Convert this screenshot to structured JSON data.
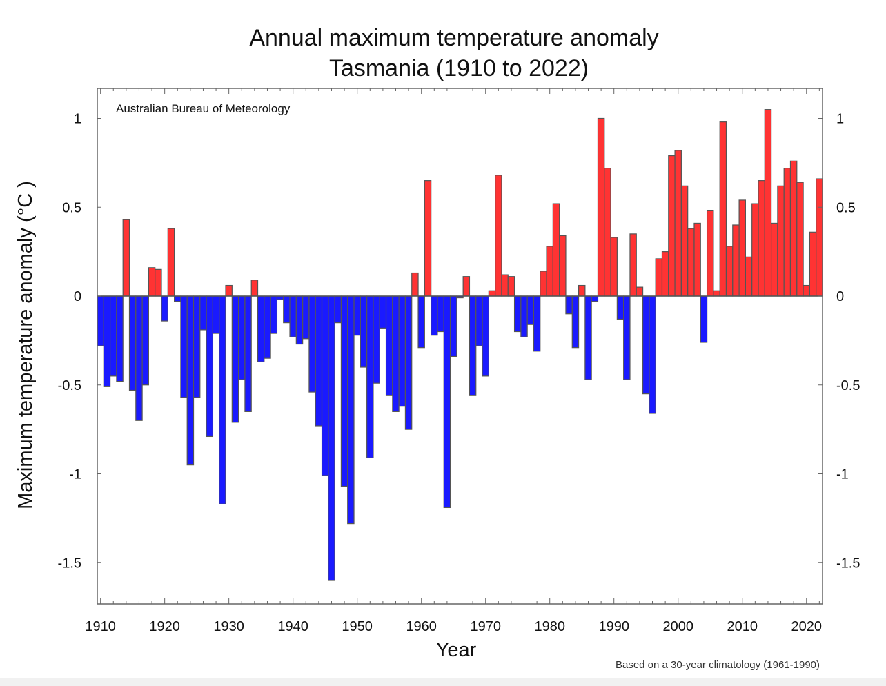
{
  "chart_data": {
    "type": "bar",
    "title": "Annual maximum temperature anomaly",
    "subtitle": "Tasmania (1910 to 2022)",
    "source_label": "Australian Bureau of Meteorology",
    "footnote": "Based on a 30-year climatology (1961-1990)",
    "xlabel": "Year",
    "ylabel": "Maximum temperature anomaly (°C )",
    "ylim": [
      -1.75,
      1.17
    ],
    "xlim": [
      1909.5,
      2022.5
    ],
    "yticks": [
      1,
      0.5,
      0,
      -0.5,
      -1,
      -1.5
    ],
    "ytick_labels": [
      "1",
      "0.5",
      "0",
      "-0.5",
      "-1",
      "-1.5"
    ],
    "xticks": [
      1910,
      1920,
      1930,
      1940,
      1950,
      1960,
      1970,
      1980,
      1990,
      2000,
      2010,
      2020
    ],
    "xtick_labels": [
      "1910",
      "1920",
      "1930",
      "1940",
      "1950",
      "1960",
      "1970",
      "1980",
      "1990",
      "2000",
      "2010",
      "2020"
    ],
    "grid": false,
    "colors": {
      "positive": "#ff3333",
      "negative": "#1a1aff",
      "outline": "#555555"
    },
    "start_year": 1910,
    "values": [
      -0.28,
      -0.51,
      -0.45,
      -0.48,
      0.43,
      -0.53,
      -0.7,
      -0.5,
      0.16,
      0.15,
      -0.14,
      0.38,
      -0.03,
      -0.57,
      -0.95,
      -0.57,
      -0.19,
      -0.79,
      -0.21,
      -1.17,
      0.06,
      -0.71,
      -0.47,
      -0.65,
      0.09,
      -0.37,
      -0.35,
      -0.21,
      -0.02,
      -0.15,
      -0.23,
      -0.27,
      -0.24,
      -0.54,
      -0.73,
      -1.01,
      -1.6,
      -0.15,
      -1.07,
      -1.28,
      -0.22,
      -0.4,
      -0.91,
      -0.49,
      -0.18,
      -0.56,
      -0.65,
      -0.62,
      -0.75,
      0.13,
      -0.29,
      0.65,
      -0.22,
      -0.2,
      -1.19,
      -0.34,
      -0.01,
      0.11,
      -0.56,
      -0.28,
      -0.45,
      0.03,
      0.68,
      0.12,
      0.11,
      -0.2,
      -0.23,
      -0.16,
      -0.31,
      0.14,
      0.28,
      0.52,
      0.34,
      -0.1,
      -0.29,
      0.06,
      -0.47,
      -0.03,
      1.0,
      0.72,
      0.33,
      -0.13,
      -0.47,
      0.35,
      0.05,
      -0.55,
      -0.66,
      0.21,
      0.25,
      0.79,
      0.82,
      0.62,
      0.38,
      0.41,
      -0.26,
      0.48,
      0.03,
      0.98,
      0.28,
      0.4,
      0.54,
      0.22,
      0.52,
      0.65,
      1.05,
      0.41,
      0.62,
      0.72,
      0.76,
      0.64,
      0.06,
      0.36,
      0.66
    ]
  }
}
